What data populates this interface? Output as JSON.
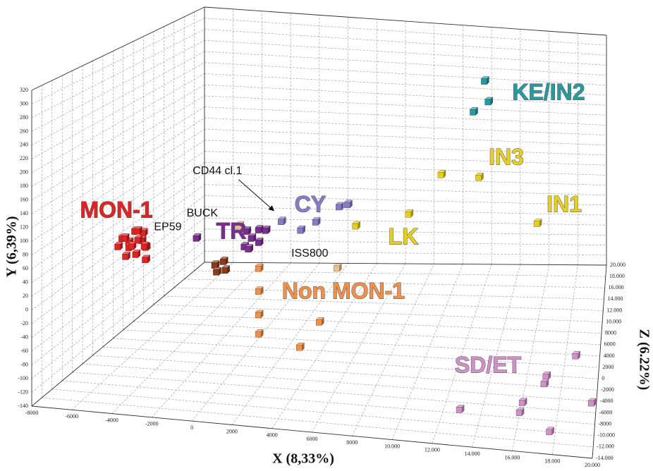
{
  "chart_data": {
    "type": "scatter3d",
    "x_label": "X (8,33%)",
    "y_label": "Y (6,39%)",
    "z_label": "Z (6.22%)",
    "xlim": [
      -8000,
      20000
    ],
    "ylim": [
      -140,
      320
    ],
    "zlim": [
      -14000,
      20000
    ],
    "xticks": [
      -8000,
      -6000,
      -4000,
      -2000,
      0,
      2000,
      4000,
      6000,
      8000,
      {
        "value": 10000,
        "label": "10.000"
      },
      {
        "value": 12000,
        "label": "12.000"
      },
      {
        "value": 14000,
        "label": "14.000"
      },
      {
        "value": 16000,
        "label": "16.000"
      },
      {
        "value": 18000,
        "label": "18.000"
      },
      {
        "value": 20000,
        "label": "20.000"
      }
    ],
    "yticks": [
      -140,
      -120,
      -100,
      -80,
      -60,
      -40,
      -20,
      0,
      20,
      40,
      60,
      80,
      100,
      120,
      140,
      160,
      180,
      200,
      220,
      240,
      260,
      280,
      300,
      320
    ],
    "zticks": [
      {
        "value": -14000,
        "label": "-14.000"
      },
      {
        "value": -12000,
        "label": "-12.000"
      },
      {
        "value": -10000,
        "label": "-10.000"
      },
      -8000,
      -6000,
      -4000,
      -2000,
      0,
      2000,
      4000,
      6000,
      8000,
      {
        "value": 10000,
        "label": "10.000"
      },
      {
        "value": 12000,
        "label": "12.000"
      },
      {
        "value": 14000,
        "label": "14.000"
      },
      {
        "value": 16000,
        "label": "16.000"
      },
      {
        "value": 18000,
        "label": "18.000"
      },
      {
        "value": 20000,
        "label": "20.000"
      }
    ],
    "grid": true,
    "series": [
      {
        "name": "MON-1",
        "color": "#e02424",
        "x": [
          -7800,
          -7500,
          -7200,
          -6900,
          -6600,
          -7700,
          -7400,
          -7100,
          -6800,
          -6500,
          -7300,
          -7000,
          -6700,
          -6300,
          -7600,
          -7000
        ],
        "y": [
          14,
          18,
          24,
          28,
          20,
          2,
          0,
          6,
          10,
          4,
          -8,
          -10,
          -4,
          -14,
          10,
          16
        ],
        "z": [
          3000,
          2500,
          3500,
          3000,
          2000,
          4000,
          3000,
          2500,
          3500,
          3000,
          2000,
          3000,
          4000,
          2500,
          1500,
          4500
        ]
      },
      {
        "name": "TR",
        "color": "#7a2f8e",
        "x": [
          -3470,
          -560,
          150,
          560,
          -270,
          -690,
          150,
          -440
        ],
        "y": [
          24,
          42,
          46,
          46,
          31,
          16,
          25,
          13
        ],
        "z": [
          3000,
          3000,
          3000,
          3000,
          3000,
          3000,
          3000,
          3000
        ],
        "labels": [
          "EP59",
          null,
          null,
          null,
          null,
          null,
          null,
          null
        ]
      },
      {
        "name": "CY",
        "color": "#8a7cc4",
        "x": [
          1470,
          2590,
          3470,
          4830,
          5330
        ],
        "y": [
          63,
          51,
          67,
          96,
          101
        ],
        "z": [
          3000,
          3000,
          3000,
          3000,
          3000
        ],
        "labels": [
          "CD44 cl.1",
          null,
          null,
          null,
          null
        ]
      },
      {
        "name": "LK",
        "color": "#e6cf22",
        "x": [
          5790,
          8870
        ],
        "y": [
          66,
          94
        ],
        "z": [
          3000,
          3000
        ]
      },
      {
        "name": "IN3",
        "color": "#e6cf22",
        "x": [
          9940,
          12290
        ],
        "y": [
          115,
          115
        ],
        "z": [
          9800,
          9800
        ]
      },
      {
        "name": "IN1",
        "color": "#e6cf22",
        "x": [
          15920
        ],
        "y": [
          38
        ],
        "z": [
          9800
        ]
      },
      {
        "name": "KE/IN2",
        "color": "#2a9aa0",
        "x": [
          12640,
          12870,
          11940
        ],
        "y": [
          291,
          254,
          233
        ],
        "z": [
          9800,
          9800,
          9800
        ]
      },
      {
        "name": "SD/ET",
        "color": "#d090c8",
        "x": [
          18830,
          17220,
          17110,
          16120,
          16160,
          13080,
          17700,
          19780
        ],
        "y": [
          -67,
          -106,
          -119,
          -122,
          -108,
          -112,
          -135,
          -113
        ],
        "z": [
          -3800,
          -3800,
          -3800,
          -7200,
          -10600,
          -10600,
          -10600,
          -7200
        ]
      },
      {
        "name": "Non MON-1",
        "color": "#f0904a",
        "x": [
          150,
          150,
          150,
          150,
          3680,
          3770
        ],
        "y": [
          -18,
          -56,
          -95,
          -127,
          -101,
          -90
        ],
        "z": [
          3000,
          3000,
          3000,
          3000,
          3000,
          -3800
        ]
      },
      {
        "name": null,
        "color": "#8b3a1a",
        "x": [
          -2400,
          -1900,
          -2300,
          -1800
        ],
        "y": [
          -18,
          -11,
          -29,
          -25
        ],
        "z": [
          3000,
          3000,
          3000,
          3000
        ]
      },
      {
        "name": null,
        "color": "#e8c490",
        "x": [
          -970,
          4710
        ],
        "y": [
          50,
          -8
        ],
        "z": [
          3000,
          3000
        ],
        "labels": [
          "BUCK",
          "ISS800"
        ]
      }
    ]
  }
}
